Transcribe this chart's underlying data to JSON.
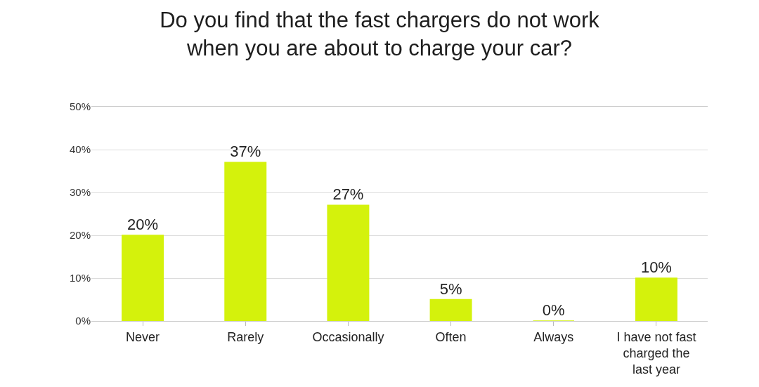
{
  "chart_data": {
    "type": "bar",
    "title": "Do you find that the fast chargers do not work\nwhen you are about to charge your car?",
    "categories": [
      "Never",
      "Rarely",
      "Occasionally",
      "Often",
      "Always",
      "I have not fast charged the last year"
    ],
    "values": [
      20,
      37,
      27,
      5,
      0,
      10
    ],
    "value_labels": [
      "20%",
      "37%",
      "27%",
      "5%",
      "0%",
      "10%"
    ],
    "color": "#d4f20c",
    "ylim": [
      0,
      50
    ],
    "yticks": [
      {
        "value": 0,
        "label": "0%"
      },
      {
        "value": 10,
        "label": "10%"
      },
      {
        "value": 20,
        "label": "20%"
      },
      {
        "value": 30,
        "label": "30%"
      },
      {
        "value": 40,
        "label": "40%"
      },
      {
        "value": 50,
        "label": "50%"
      }
    ],
    "grid": "y",
    "legend": false
  }
}
